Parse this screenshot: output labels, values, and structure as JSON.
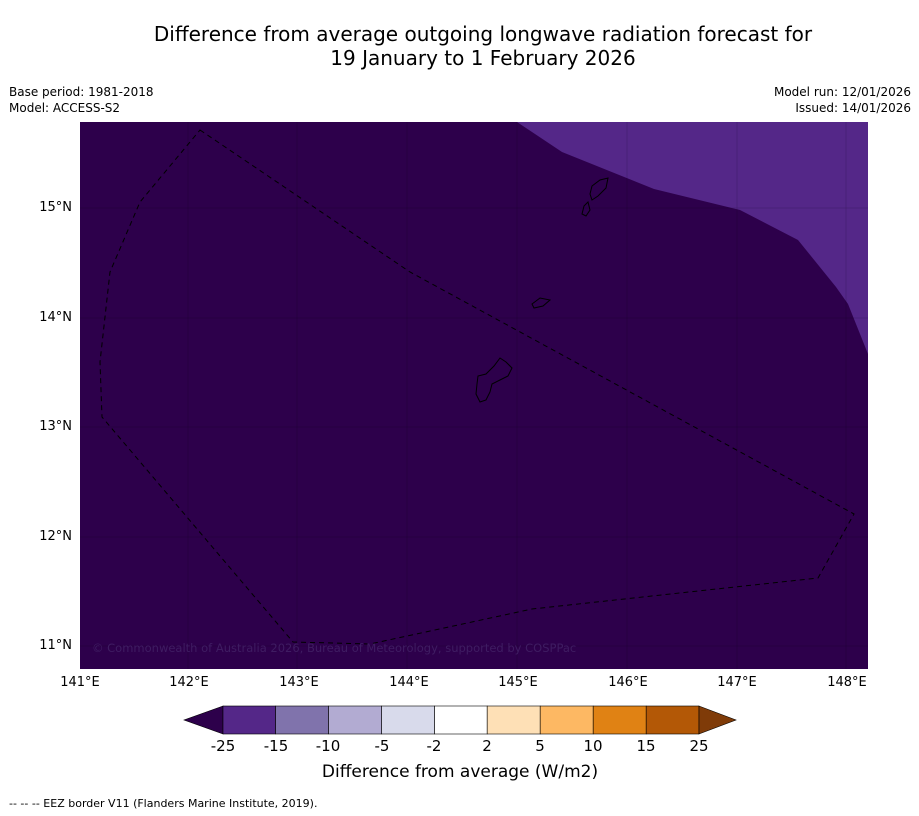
{
  "header": {
    "title_line1": "Difference from average outgoing longwave radiation forecast for",
    "title_line2": "19 January to 1 February 2026",
    "base_period": "Base period: 1981-2018",
    "model": "Model: ACCESS-S2",
    "model_run": "Model run: 12/01/2026",
    "issued": "Issued: 14/01/2026"
  },
  "map": {
    "latitude_labels": [
      "15°N",
      "14°N",
      "13°N",
      "12°N",
      "11°N"
    ],
    "longitude_labels": [
      "141°E",
      "142°E",
      "143°E",
      "144°E",
      "145°E",
      "146°E",
      "147°E",
      "148°E"
    ],
    "copyright": "© Commonwealth of Australia 2026, Bureau of Meteorology, supported by COSPPac",
    "colors": {
      "background": "#2d004b",
      "anomaly_zone": "#542788",
      "border": "#000000"
    }
  },
  "legend": {
    "ticks": [
      "-25",
      "-15",
      "-10",
      "-5",
      "-2",
      "2",
      "5",
      "10",
      "15",
      "25"
    ],
    "colors": [
      "#2d004b",
      "#542788",
      "#8073ac",
      "#b2abd2",
      "#d8daeb",
      "#ffffff",
      "#fee0b6",
      "#fdb863",
      "#e08214",
      "#b35806",
      "#7f3b08"
    ],
    "label": "Difference from average (W/m2)"
  },
  "footnote": "--  --  -- EEZ border V11 (Flanders Marine Institute, 2019)."
}
